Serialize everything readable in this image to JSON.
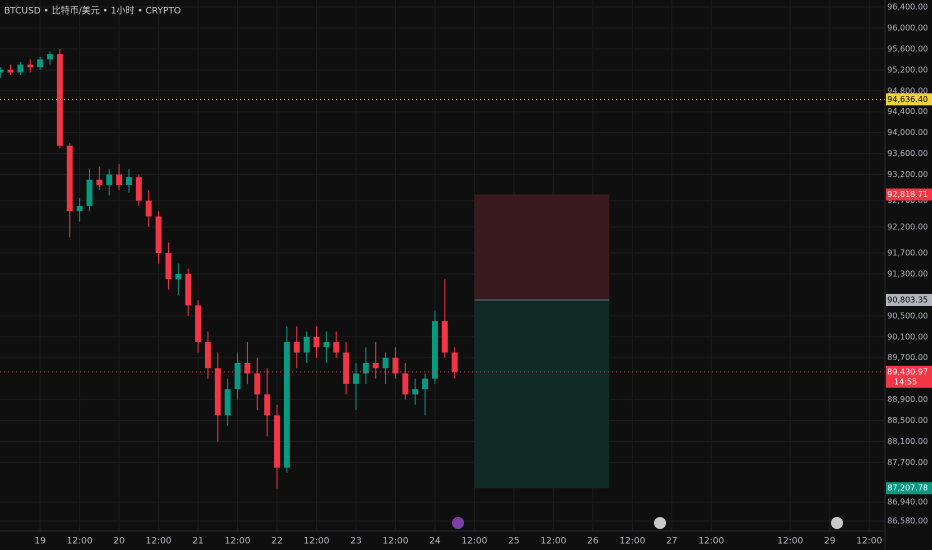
{
  "chart_data": {
    "type": "candlestick",
    "title": "BTCUSD • 比特币/美元 • 1小时 • CRYPTO",
    "up_color": "#089981",
    "down_color": "#f23645",
    "x": [
      -12,
      -9,
      -6,
      -3,
      0,
      3,
      6,
      9,
      12,
      15,
      18,
      21,
      24,
      27,
      30,
      33,
      36,
      39,
      42,
      45,
      48,
      51,
      54,
      57,
      60,
      63,
      66,
      69,
      72,
      75,
      78,
      81,
      84,
      87,
      90,
      93,
      96,
      99,
      102,
      105,
      108,
      111,
      114,
      117,
      120,
      123,
      126
    ],
    "candles": [
      [
        95150,
        95250,
        95050,
        95200
      ],
      [
        95200,
        95300,
        95100,
        95150
      ],
      [
        95150,
        95350,
        95100,
        95300
      ],
      [
        95300,
        95400,
        95150,
        95250
      ],
      [
        95250,
        95450,
        95200,
        95400
      ],
      [
        95400,
        95550,
        95300,
        95500
      ],
      [
        95500,
        95600,
        93700,
        93750
      ],
      [
        93750,
        93800,
        92000,
        92500
      ],
      [
        92500,
        92750,
        92300,
        92600
      ],
      [
        92600,
        93300,
        92500,
        93100
      ],
      [
        93100,
        93350,
        92900,
        93000
      ],
      [
        93000,
        93300,
        92800,
        93200
      ],
      [
        93200,
        93400,
        92900,
        93000
      ],
      [
        93000,
        93300,
        92850,
        93150
      ],
      [
        93150,
        93200,
        92600,
        92700
      ],
      [
        92700,
        92900,
        92200,
        92400
      ],
      [
        92400,
        92500,
        91500,
        91700
      ],
      [
        91700,
        91900,
        91000,
        91200
      ],
      [
        91200,
        91500,
        90900,
        91300
      ],
      [
        91300,
        91400,
        90500,
        90700
      ],
      [
        90700,
        90800,
        89800,
        90000
      ],
      [
        90000,
        90200,
        89300,
        89500
      ],
      [
        89500,
        89800,
        88100,
        88600
      ],
      [
        88600,
        89300,
        88400,
        89100
      ],
      [
        89100,
        89800,
        88900,
        89600
      ],
      [
        89600,
        90000,
        89200,
        89400
      ],
      [
        89400,
        89700,
        88700,
        89000
      ],
      [
        89000,
        89500,
        88200,
        88600
      ],
      [
        88600,
        88800,
        87200,
        87600
      ],
      [
        87600,
        90300,
        87500,
        90000
      ],
      [
        90000,
        90300,
        89500,
        89800
      ],
      [
        89800,
        90200,
        89600,
        90100
      ],
      [
        90100,
        90300,
        89700,
        89900
      ],
      [
        89900,
        90200,
        89600,
        90000
      ],
      [
        90000,
        90200,
        89700,
        89800
      ],
      [
        89800,
        90000,
        89000,
        89200
      ],
      [
        89200,
        89600,
        88700,
        89400
      ],
      [
        89400,
        89900,
        89200,
        89600
      ],
      [
        89600,
        90000,
        89300,
        89500
      ],
      [
        89500,
        89800,
        89200,
        89700
      ],
      [
        89700,
        89900,
        89300,
        89400
      ],
      [
        89400,
        89600,
        88900,
        89000
      ],
      [
        89000,
        89300,
        88800,
        89100
      ],
      [
        89100,
        89400,
        88600,
        89300
      ],
      [
        89300,
        90600,
        89200,
        90400
      ],
      [
        90400,
        91200,
        89700,
        89800
      ],
      [
        89800,
        89900,
        89300,
        89430.97
      ]
    ],
    "xlim": [
      -12.2,
      256.8
    ],
    "ylim": [
      86390,
      96534
    ],
    "xticks": [
      {
        "value": 0,
        "label": "19"
      },
      {
        "value": 12,
        "label": "12:00"
      },
      {
        "value": 24,
        "label": "20"
      },
      {
        "value": 36,
        "label": "12:00"
      },
      {
        "value": 48,
        "label": "21"
      },
      {
        "value": 60,
        "label": "12:00"
      },
      {
        "value": 72,
        "label": "22"
      },
      {
        "value": 84,
        "label": "12:00"
      },
      {
        "value": 96,
        "label": "23"
      },
      {
        "value": 108,
        "label": "12:00"
      },
      {
        "value": 120,
        "label": "24"
      },
      {
        "value": 132,
        "label": "12:00"
      },
      {
        "value": 144,
        "label": "25"
      },
      {
        "value": 156,
        "label": "12:00"
      },
      {
        "value": 168,
        "label": "26"
      },
      {
        "value": 180,
        "label": "12:00"
      },
      {
        "value": 192,
        "label": "27"
      },
      {
        "value": 204,
        "label": "12:00"
      },
      {
        "value": 228,
        "label": "12:00"
      },
      {
        "value": 240,
        "label": "29"
      },
      {
        "value": 252,
        "label": "12:00"
      }
    ],
    "yticks": [
      {
        "value": 96400,
        "label": "96,400.00"
      },
      {
        "value": 96000,
        "label": "96,000.00"
      },
      {
        "value": 95600,
        "label": "95,600.00"
      },
      {
        "value": 95200,
        "label": "95,200.00"
      },
      {
        "value": 94800,
        "label": "94,800.00"
      },
      {
        "value": 94400,
        "label": "94,400.00"
      },
      {
        "value": 94000,
        "label": "94,000.00"
      },
      {
        "value": 93600,
        "label": "93,600.00"
      },
      {
        "value": 93200,
        "label": "93,200.00"
      },
      {
        "value": 92700,
        "label": "92,700.00"
      },
      {
        "value": 92200,
        "label": "92,200.00"
      },
      {
        "value": 91700,
        "label": "91,700.00"
      },
      {
        "value": 91300,
        "label": "91,300.00"
      },
      {
        "value": 90500,
        "label": "90,500.00"
      },
      {
        "value": 90100,
        "label": "90,100.00"
      },
      {
        "value": 89700,
        "label": "89,700.00"
      },
      {
        "value": 88900,
        "label": "88,900.00"
      },
      {
        "value": 88500,
        "label": "88,500.00"
      },
      {
        "value": 88100,
        "label": "88,100.00"
      },
      {
        "value": 87700,
        "label": "87,700.00"
      },
      {
        "value": 86940,
        "label": "86,940.00"
      },
      {
        "value": 86580,
        "label": "86,580.00"
      }
    ],
    "grid": true,
    "alert_line": {
      "value": 94636.4,
      "label": "94,636.40",
      "color": "#f0d240"
    },
    "current_price": {
      "value": 89430.97,
      "label": "89,430.97",
      "countdown": "14:55",
      "color": "#f23645"
    },
    "position": {
      "x_start": 132,
      "x_end": 173,
      "stop": {
        "value": 92818.71,
        "label": "92,818.71",
        "color": "#f23645",
        "zone": "#3a1a1e"
      },
      "entry": {
        "value": 90803.35,
        "label": "90,803.35",
        "color": "#b2b5be"
      },
      "target": {
        "value": 87207.78,
        "label": "87,207.78",
        "color": "#089981",
        "zone": "#102b26"
      }
    }
  }
}
